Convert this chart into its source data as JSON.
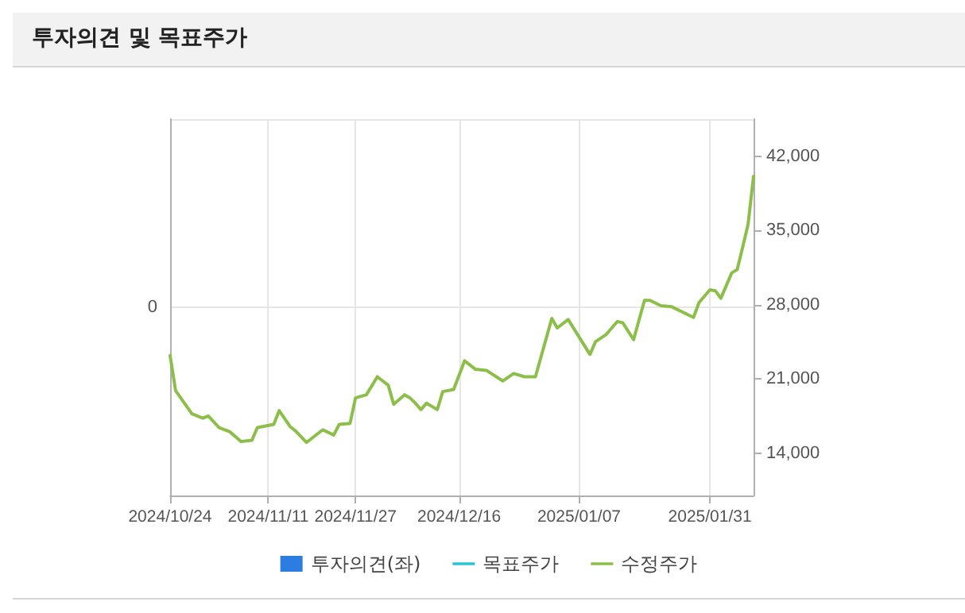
{
  "chart_data": {
    "type": "line",
    "title": "투자의견 및 목표주가",
    "xlim": [
      "2024-10-24",
      "2025-02-08"
    ],
    "xticks": [
      {
        "value": "2024-10-24",
        "label": "2024/10/24"
      },
      {
        "value": "2024-11-11",
        "label": "2024/11/11"
      },
      {
        "value": "2024-11-27",
        "label": "2024/11/27"
      },
      {
        "value": "2024-12-16",
        "label": "2024/12/16"
      },
      {
        "value": "2025-01-07",
        "label": "2025/01/07"
      },
      {
        "value": "2025-01-31",
        "label": "2025/01/31"
      }
    ],
    "annotations": [
      "0"
    ],
    "y2lim": [
      10000,
      45500
    ],
    "y2ticks": [
      {
        "value": 14000,
        "label": "14,000"
      },
      {
        "value": 21000,
        "label": "21,000"
      },
      {
        "value": 28000,
        "label": "28,000"
      },
      {
        "value": 35000,
        "label": "35,000"
      },
      {
        "value": 42000,
        "label": "42,000"
      }
    ],
    "series": [
      {
        "name": "투자의견(좌)",
        "type": "bar",
        "color": "#2b7de1"
      },
      {
        "name": "목표주가",
        "type": "line",
        "axis": "y2",
        "color": "#2ac4d6"
      },
      {
        "name": "수정주가",
        "axis": "y2",
        "color": "#8cbf4a",
        "x": [
          "2024-10-24",
          "2024-10-25",
          "2024-10-28",
          "2024-10-30",
          "2024-10-31",
          "2024-11-02",
          "2024-11-04",
          "2024-11-06",
          "2024-11-08",
          "2024-11-09",
          "2024-11-12",
          "2024-11-13",
          "2024-11-15",
          "2024-11-16",
          "2024-11-18",
          "2024-11-21",
          "2024-11-23",
          "2024-11-24",
          "2024-11-26",
          "2024-11-27",
          "2024-11-29",
          "2024-12-01",
          "2024-12-03",
          "2024-12-04",
          "2024-12-06",
          "2024-12-07",
          "2024-12-08",
          "2024-12-09",
          "2024-12-10",
          "2024-12-12",
          "2024-12-13",
          "2024-12-15",
          "2024-12-17",
          "2024-12-19",
          "2024-12-21",
          "2024-12-24",
          "2024-12-26",
          "2024-12-28",
          "2024-12-30",
          "2025-01-02",
          "2025-01-03",
          "2025-01-05",
          "2025-01-09",
          "2025-01-10",
          "2025-01-12",
          "2025-01-14",
          "2025-01-15",
          "2025-01-17",
          "2025-01-19",
          "2025-01-20",
          "2025-01-22",
          "2025-01-24",
          "2025-01-28",
          "2025-01-29",
          "2025-01-31",
          "2025-02-01",
          "2025-02-02",
          "2025-02-04",
          "2025-02-05",
          "2025-02-06",
          "2025-02-07",
          "2025-02-08"
        ],
        "values": [
          23200,
          19900,
          17700,
          17300,
          17500,
          16400,
          16000,
          15100,
          15200,
          16400,
          16700,
          18000,
          16500,
          16100,
          15000,
          16200,
          15700,
          16700,
          16800,
          19200,
          19500,
          21200,
          20400,
          18600,
          19500,
          19200,
          18700,
          18100,
          18700,
          18100,
          19800,
          20000,
          22700,
          21900,
          21800,
          20800,
          21500,
          21200,
          21200,
          26700,
          25800,
          26600,
          23300,
          24500,
          25200,
          26400,
          26300,
          24700,
          28400,
          28400,
          27900,
          27800,
          26800,
          28200,
          29400,
          29300,
          28600,
          31000,
          31300,
          33400,
          35600,
          40100
        ]
      }
    ],
    "grid": true,
    "legend": "bottom",
    "marker": "none",
    "line_style": "solid"
  }
}
